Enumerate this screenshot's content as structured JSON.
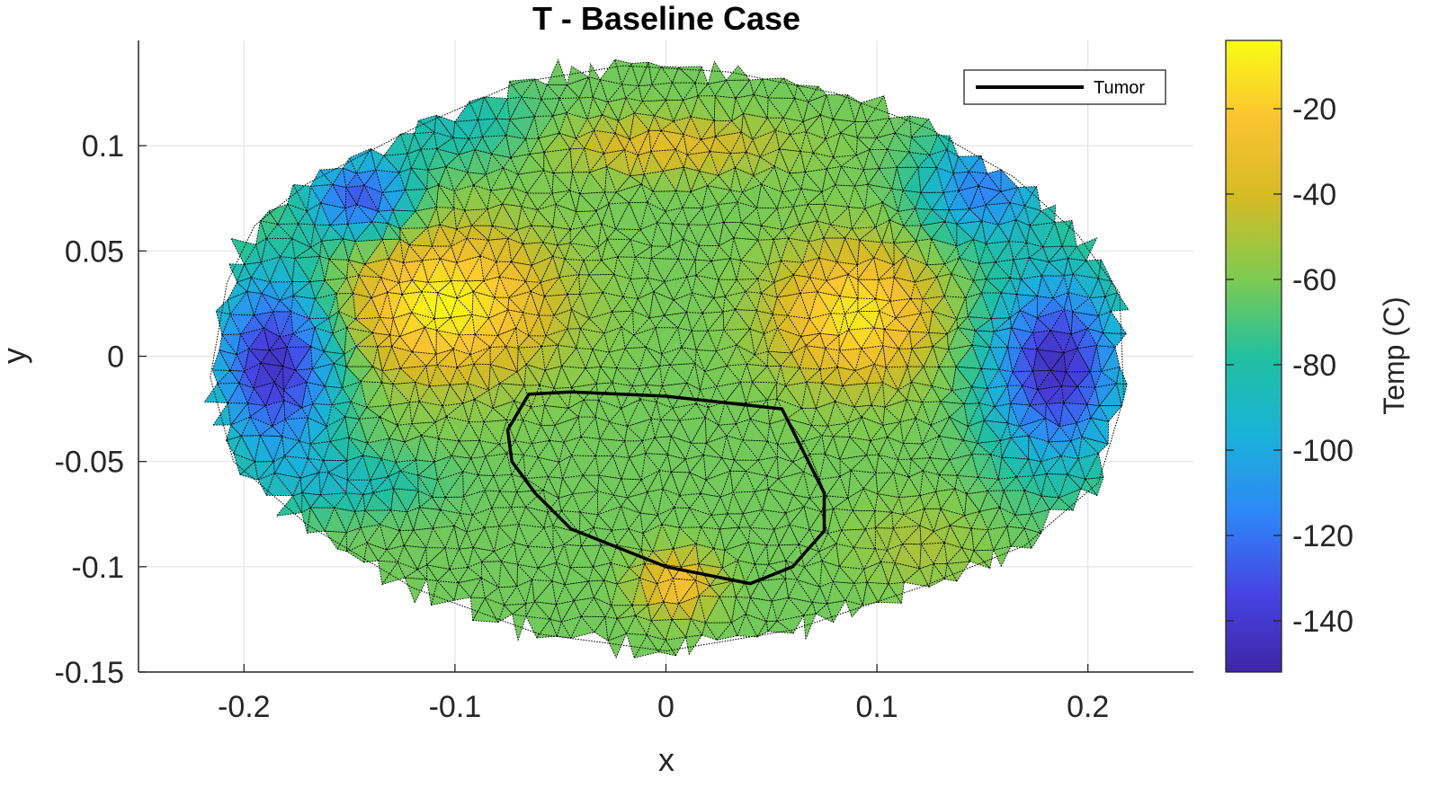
{
  "chart_data": {
    "type": "heatmap",
    "title": "T - Baseline Case",
    "xlabel": "x",
    "ylabel": "y",
    "xlim": [
      -0.25,
      0.25
    ],
    "ylim": [
      -0.15,
      0.15
    ],
    "grid": true,
    "x_ticks": [
      {
        "value": -0.2,
        "label": "-0.2"
      },
      {
        "value": -0.1,
        "label": "-0.1"
      },
      {
        "value": 0,
        "label": "0"
      },
      {
        "value": 0.1,
        "label": "0.1"
      },
      {
        "value": 0.2,
        "label": "0.2"
      }
    ],
    "y_ticks": [
      {
        "value": 0.1,
        "label": "0.1"
      },
      {
        "value": 0.05,
        "label": "0.05"
      },
      {
        "value": 0,
        "label": "0"
      },
      {
        "value": -0.05,
        "label": "-0.05"
      },
      {
        "value": -0.1,
        "label": "-0.1"
      },
      {
        "value": -0.15,
        "label": "-0.15"
      }
    ],
    "colorbar": {
      "label": "Temp (C)",
      "range": [
        -152,
        -4
      ],
      "ticks": [
        {
          "value": -20,
          "label": "-20"
        },
        {
          "value": -40,
          "label": "-40"
        },
        {
          "value": -60,
          "label": "-60"
        },
        {
          "value": -80,
          "label": "-80"
        },
        {
          "value": -100,
          "label": "-100"
        },
        {
          "value": -120,
          "label": "-120"
        },
        {
          "value": -140,
          "label": "-140"
        }
      ],
      "colormap": [
        "#3e26a8",
        "#4744e4",
        "#2e87f7",
        "#1ab2d9",
        "#21c0a0",
        "#7fcb50",
        "#d4bb26",
        "#fbc330",
        "#f9fb15"
      ]
    },
    "legend": {
      "position": "top-right",
      "entries": [
        "Tumor"
      ]
    },
    "domain_outline": [
      [
        -0.216,
        -0.01
      ],
      [
        -0.208,
        0.035
      ],
      [
        -0.195,
        0.062
      ],
      [
        -0.17,
        0.082
      ],
      [
        -0.12,
        0.108
      ],
      [
        -0.07,
        0.13
      ],
      [
        -0.02,
        0.138
      ],
      [
        0.03,
        0.135
      ],
      [
        0.08,
        0.125
      ],
      [
        0.125,
        0.108
      ],
      [
        0.165,
        0.085
      ],
      [
        0.195,
        0.058
      ],
      [
        0.215,
        0.03
      ],
      [
        0.217,
        -0.02
      ],
      [
        0.205,
        -0.06
      ],
      [
        0.17,
        -0.09
      ],
      [
        0.12,
        -0.11
      ],
      [
        0.06,
        -0.13
      ],
      [
        0.0,
        -0.14
      ],
      [
        -0.06,
        -0.132
      ],
      [
        -0.12,
        -0.11
      ],
      [
        -0.17,
        -0.08
      ],
      [
        -0.205,
        -0.05
      ]
    ],
    "tumor_contour": [
      [
        -0.065,
        -0.018
      ],
      [
        -0.045,
        -0.017
      ],
      [
        0.0,
        -0.019
      ],
      [
        0.055,
        -0.025
      ],
      [
        0.065,
        -0.045
      ],
      [
        0.075,
        -0.065
      ],
      [
        0.075,
        -0.083
      ],
      [
        0.06,
        -0.1
      ],
      [
        0.04,
        -0.108
      ],
      [
        0.0,
        -0.1
      ],
      [
        -0.045,
        -0.082
      ],
      [
        -0.062,
        -0.065
      ],
      [
        -0.073,
        -0.05
      ],
      [
        -0.075,
        -0.035
      ]
    ],
    "temperature_field": {
      "background": -62,
      "features": [
        {
          "x": -0.105,
          "y": 0.025,
          "sx": 0.05,
          "sy": 0.035,
          "value": -6
        },
        {
          "x": 0.09,
          "y": 0.02,
          "sx": 0.038,
          "sy": 0.032,
          "value": -10
        },
        {
          "x": -0.185,
          "y": -0.003,
          "sx": 0.03,
          "sy": 0.045,
          "value": -145
        },
        {
          "x": 0.185,
          "y": -0.005,
          "sx": 0.032,
          "sy": 0.045,
          "value": -145
        },
        {
          "x": -0.145,
          "y": 0.075,
          "sx": 0.025,
          "sy": 0.02,
          "value": -130
        },
        {
          "x": 0.15,
          "y": 0.08,
          "sx": 0.03,
          "sy": 0.025,
          "value": -115
        },
        {
          "x": 0.005,
          "y": -0.108,
          "sx": 0.018,
          "sy": 0.015,
          "value": -25
        },
        {
          "x": 0.0,
          "y": 0.1,
          "sx": 0.055,
          "sy": 0.014,
          "value": -35
        },
        {
          "x": -0.1,
          "y": 0.11,
          "sx": 0.04,
          "sy": 0.02,
          "value": -85
        },
        {
          "x": -0.15,
          "y": -0.06,
          "sx": 0.04,
          "sy": 0.015,
          "value": -85
        },
        {
          "x": 0.12,
          "y": -0.09,
          "sx": 0.03,
          "sy": 0.02,
          "value": -50
        }
      ]
    }
  }
}
